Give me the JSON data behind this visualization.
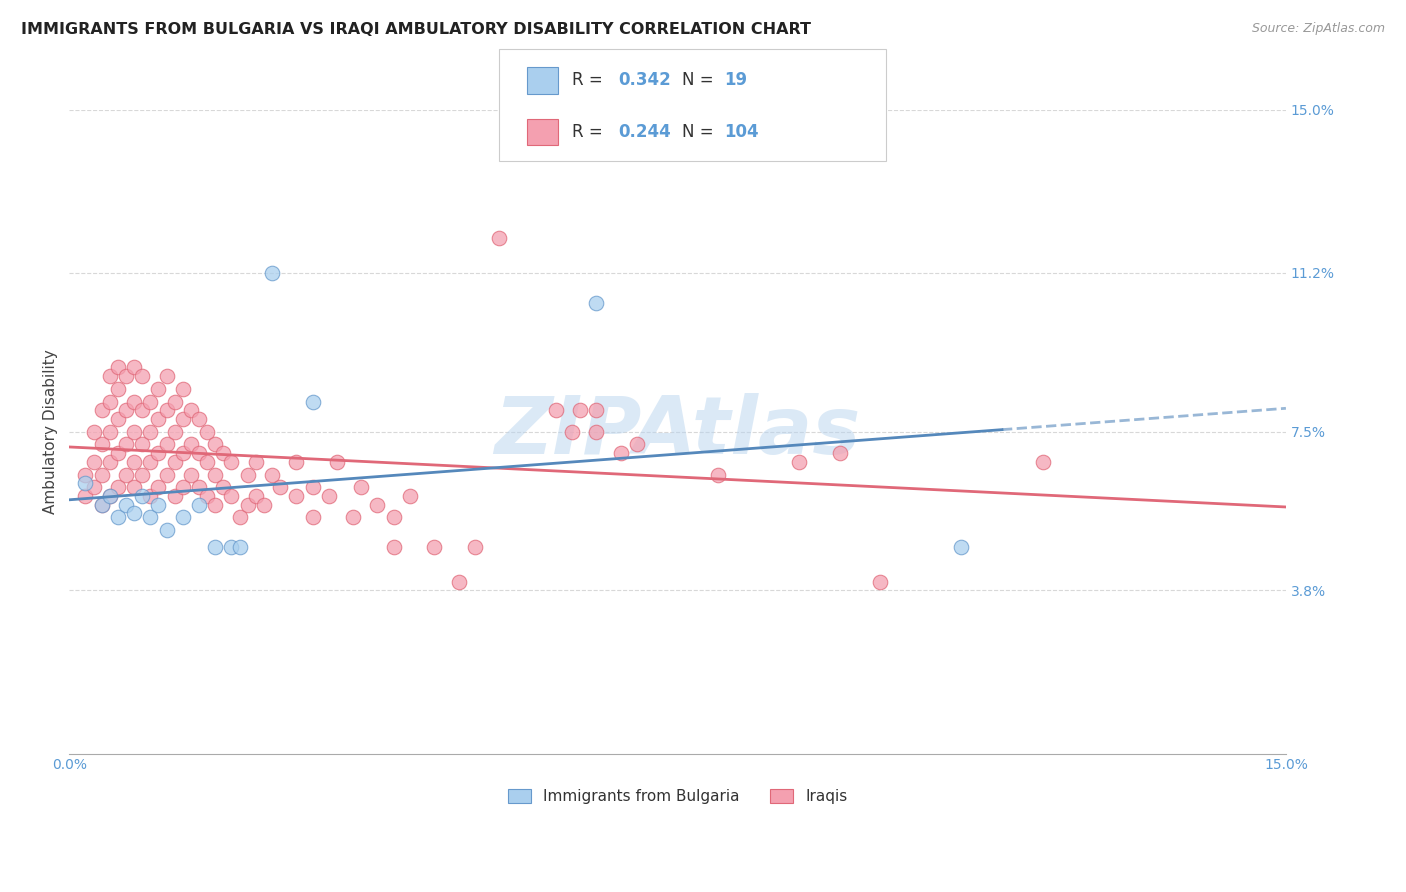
{
  "title": "IMMIGRANTS FROM BULGARIA VS IRAQI AMBULATORY DISABILITY CORRELATION CHART",
  "source": "Source: ZipAtlas.com",
  "ylabel": "Ambulatory Disability",
  "xlim": [
    0.0,
    0.15
  ],
  "ylim": [
    0.0,
    0.15
  ],
  "yticks_right": [
    0.038,
    0.075,
    0.112,
    0.15
  ],
  "ytick_labels_right": [
    "3.8%",
    "7.5%",
    "11.2%",
    "15.0%"
  ],
  "bulgaria_color": "#aacfee",
  "iraq_color": "#f4a0b0",
  "bulgaria_edge_color": "#6699cc",
  "iraq_edge_color": "#e06878",
  "bulgaria_line_color": "#5588bb",
  "iraq_line_color": "#e06878",
  "right_label_color": "#5b9bd5",
  "watermark_color": "#b8d4ee",
  "background_color": "#ffffff",
  "grid_color": "#d8d8d8",
  "axis_color": "#aaaaaa",
  "title_fontsize": 11.5,
  "label_fontsize": 11,
  "tick_fontsize": 10,
  "bulgaria_scatter": [
    [
      0.002,
      0.063
    ],
    [
      0.004,
      0.058
    ],
    [
      0.005,
      0.06
    ],
    [
      0.006,
      0.055
    ],
    [
      0.007,
      0.058
    ],
    [
      0.008,
      0.056
    ],
    [
      0.009,
      0.06
    ],
    [
      0.01,
      0.055
    ],
    [
      0.011,
      0.058
    ],
    [
      0.012,
      0.052
    ],
    [
      0.014,
      0.055
    ],
    [
      0.016,
      0.058
    ],
    [
      0.018,
      0.048
    ],
    [
      0.02,
      0.048
    ],
    [
      0.021,
      0.048
    ],
    [
      0.025,
      0.112
    ],
    [
      0.03,
      0.082
    ],
    [
      0.065,
      0.105
    ],
    [
      0.11,
      0.048
    ]
  ],
  "iraq_scatter": [
    [
      0.002,
      0.06
    ],
    [
      0.002,
      0.065
    ],
    [
      0.003,
      0.062
    ],
    [
      0.003,
      0.068
    ],
    [
      0.003,
      0.075
    ],
    [
      0.004,
      0.058
    ],
    [
      0.004,
      0.065
    ],
    [
      0.004,
      0.072
    ],
    [
      0.004,
      0.08
    ],
    [
      0.005,
      0.06
    ],
    [
      0.005,
      0.068
    ],
    [
      0.005,
      0.075
    ],
    [
      0.005,
      0.082
    ],
    [
      0.005,
      0.088
    ],
    [
      0.006,
      0.062
    ],
    [
      0.006,
      0.07
    ],
    [
      0.006,
      0.078
    ],
    [
      0.006,
      0.085
    ],
    [
      0.006,
      0.09
    ],
    [
      0.007,
      0.065
    ],
    [
      0.007,
      0.072
    ],
    [
      0.007,
      0.08
    ],
    [
      0.007,
      0.088
    ],
    [
      0.008,
      0.062
    ],
    [
      0.008,
      0.068
    ],
    [
      0.008,
      0.075
    ],
    [
      0.008,
      0.082
    ],
    [
      0.008,
      0.09
    ],
    [
      0.009,
      0.065
    ],
    [
      0.009,
      0.072
    ],
    [
      0.009,
      0.08
    ],
    [
      0.009,
      0.088
    ],
    [
      0.01,
      0.06
    ],
    [
      0.01,
      0.068
    ],
    [
      0.01,
      0.075
    ],
    [
      0.01,
      0.082
    ],
    [
      0.011,
      0.062
    ],
    [
      0.011,
      0.07
    ],
    [
      0.011,
      0.078
    ],
    [
      0.011,
      0.085
    ],
    [
      0.012,
      0.065
    ],
    [
      0.012,
      0.072
    ],
    [
      0.012,
      0.08
    ],
    [
      0.012,
      0.088
    ],
    [
      0.013,
      0.06
    ],
    [
      0.013,
      0.068
    ],
    [
      0.013,
      0.075
    ],
    [
      0.013,
      0.082
    ],
    [
      0.014,
      0.062
    ],
    [
      0.014,
      0.07
    ],
    [
      0.014,
      0.078
    ],
    [
      0.014,
      0.085
    ],
    [
      0.015,
      0.065
    ],
    [
      0.015,
      0.072
    ],
    [
      0.015,
      0.08
    ],
    [
      0.016,
      0.062
    ],
    [
      0.016,
      0.07
    ],
    [
      0.016,
      0.078
    ],
    [
      0.017,
      0.06
    ],
    [
      0.017,
      0.068
    ],
    [
      0.017,
      0.075
    ],
    [
      0.018,
      0.058
    ],
    [
      0.018,
      0.065
    ],
    [
      0.018,
      0.072
    ],
    [
      0.019,
      0.062
    ],
    [
      0.019,
      0.07
    ],
    [
      0.02,
      0.06
    ],
    [
      0.02,
      0.068
    ],
    [
      0.021,
      0.055
    ],
    [
      0.022,
      0.058
    ],
    [
      0.022,
      0.065
    ],
    [
      0.023,
      0.06
    ],
    [
      0.023,
      0.068
    ],
    [
      0.024,
      0.058
    ],
    [
      0.025,
      0.065
    ],
    [
      0.026,
      0.062
    ],
    [
      0.028,
      0.06
    ],
    [
      0.028,
      0.068
    ],
    [
      0.03,
      0.055
    ],
    [
      0.03,
      0.062
    ],
    [
      0.032,
      0.06
    ],
    [
      0.033,
      0.068
    ],
    [
      0.035,
      0.055
    ],
    [
      0.036,
      0.062
    ],
    [
      0.038,
      0.058
    ],
    [
      0.04,
      0.048
    ],
    [
      0.04,
      0.055
    ],
    [
      0.042,
      0.06
    ],
    [
      0.045,
      0.048
    ],
    [
      0.048,
      0.04
    ],
    [
      0.05,
      0.048
    ],
    [
      0.053,
      0.12
    ],
    [
      0.06,
      0.08
    ],
    [
      0.062,
      0.075
    ],
    [
      0.063,
      0.08
    ],
    [
      0.065,
      0.075
    ],
    [
      0.065,
      0.08
    ],
    [
      0.068,
      0.07
    ],
    [
      0.07,
      0.072
    ],
    [
      0.08,
      0.065
    ],
    [
      0.09,
      0.068
    ],
    [
      0.095,
      0.07
    ],
    [
      0.1,
      0.04
    ],
    [
      0.12,
      0.068
    ]
  ]
}
